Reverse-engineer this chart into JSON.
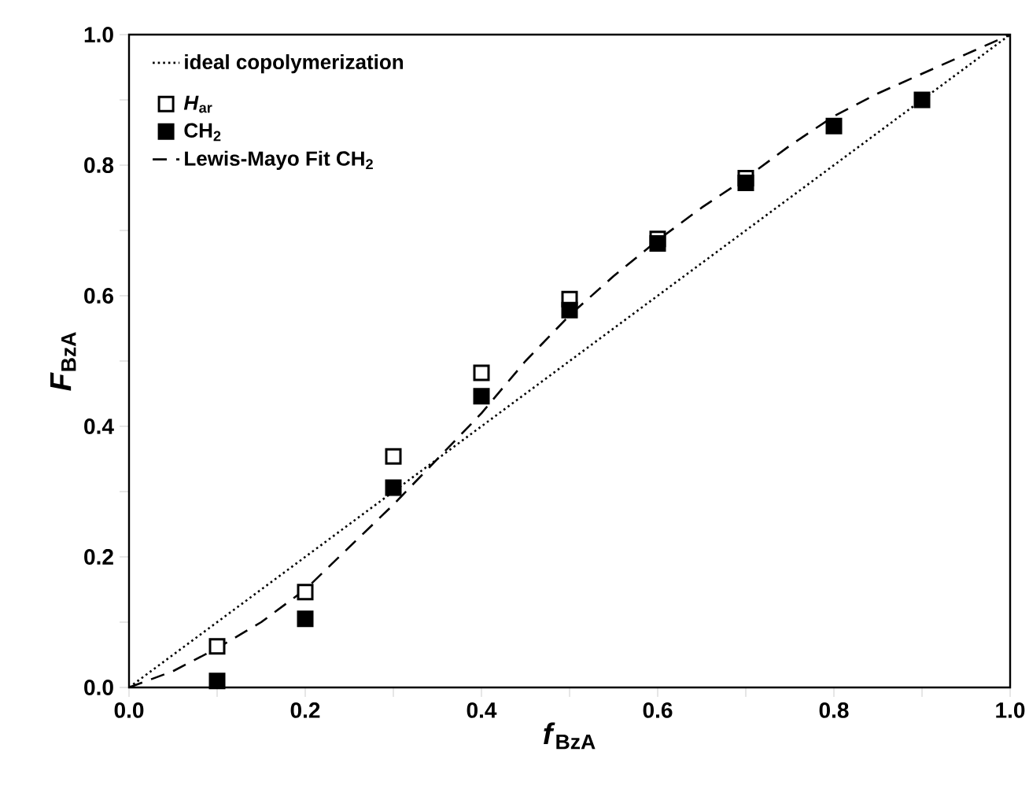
{
  "chart_data": {
    "type": "scatter",
    "xlabel": "*f*$_{BzA}$",
    "ylabel": "*F*$_{BzA}$",
    "xlim": [
      0,
      1
    ],
    "ylim": [
      0,
      1
    ],
    "xticks": [
      {
        "value": 0,
        "label": "0.0"
      },
      {
        "value": 0.1,
        "label": null
      },
      {
        "value": 0.2,
        "label": "0.2"
      },
      {
        "value": 0.3,
        "label": null
      },
      {
        "value": 0.4,
        "label": "0.4"
      },
      {
        "value": 0.5,
        "label": null
      },
      {
        "value": 0.6,
        "label": "0.6"
      },
      {
        "value": 0.7,
        "label": null
      },
      {
        "value": 0.8,
        "label": "0.8"
      },
      {
        "value": 0.9,
        "label": null
      },
      {
        "value": 1,
        "label": "1.0"
      }
    ],
    "yticks": [
      {
        "value": 0,
        "label": "0.0"
      },
      {
        "value": 0.1,
        "label": null
      },
      {
        "value": 0.2,
        "label": "0.2"
      },
      {
        "value": 0.3,
        "label": null
      },
      {
        "value": 0.4,
        "label": "0.4"
      },
      {
        "value": 0.5,
        "label": null
      },
      {
        "value": 0.6,
        "label": "0.6"
      },
      {
        "value": 0.7,
        "label": null
      },
      {
        "value": 0.8,
        "label": "0.8"
      },
      {
        "value": 0.9,
        "label": null
      },
      {
        "value": 1,
        "label": "1.0"
      }
    ],
    "legend": "top left",
    "grid": false,
    "series": [
      {
        "name": "ideal copolymerization",
        "type": "line",
        "line_style": "dotted",
        "marker": "none",
        "color": "#000000",
        "x": [
          0,
          1
        ],
        "values": [
          0,
          1
        ]
      },
      {
        "name": "*H*$_{ar}$",
        "marker": "square",
        "color": "#ffffff",
        "x": [
          0.1,
          0.2,
          0.3,
          0.4,
          0.5,
          0.6,
          0.7
        ],
        "values": [
          0.063,
          0.146,
          0.354,
          0.482,
          0.595,
          0.687,
          0.78
        ]
      },
      {
        "name": "CH$_{2}$",
        "marker": "square",
        "color": "#000000",
        "x": [
          0.1,
          0.2,
          0.3,
          0.4,
          0.5,
          0.6,
          0.7,
          0.8,
          0.9
        ],
        "values": [
          0.01,
          0.105,
          0.306,
          0.446,
          0.578,
          0.68,
          0.773,
          0.86,
          0.9
        ]
      },
      {
        "name": "Lewis-Mayo Fit CH$_{2}$",
        "type": "line",
        "line_style": "dashed",
        "marker": "none",
        "color": "#000000",
        "x": [
          0,
          0.05,
          0.1,
          0.15,
          0.2,
          0.25,
          0.3,
          0.35,
          0.4,
          0.45,
          0.5,
          0.55,
          0.6,
          0.65,
          0.7,
          0.75,
          0.8,
          0.85,
          0.9,
          0.95,
          1
        ],
        "values": [
          0,
          0.025,
          0.06,
          0.1,
          0.15,
          0.215,
          0.28,
          0.35,
          0.42,
          0.5,
          0.57,
          0.63,
          0.685,
          0.735,
          0.78,
          0.83,
          0.875,
          0.91,
          0.94,
          0.97,
          1
        ]
      }
    ]
  }
}
